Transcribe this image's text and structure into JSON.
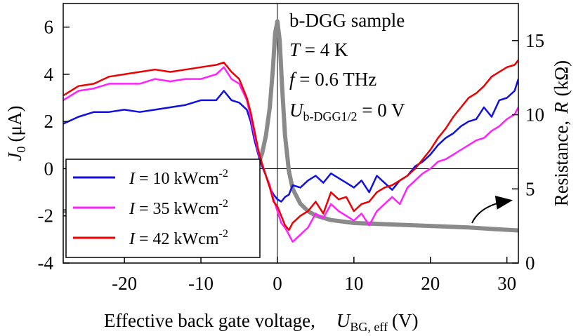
{
  "chart_data": {
    "type": "line",
    "x_axis": {
      "label_main": "Effective back gate voltage,",
      "label_symbol": "U",
      "label_sub": "BG, eff",
      "label_unit": "(V)",
      "range": [
        -28,
        31.5
      ],
      "ticks": [
        -20,
        -10,
        0,
        10,
        20,
        30
      ],
      "tick_labels": [
        "-20",
        "-10",
        "0",
        "10",
        "20",
        "30"
      ]
    },
    "y_left": {
      "label_symbol": "J",
      "label_sub": "0",
      "label_unit": "(μA)",
      "range": [
        -4,
        7
      ],
      "ticks": [
        -4,
        -2,
        0,
        2,
        4,
        6
      ],
      "tick_labels": [
        "-4",
        "-2",
        "0",
        "2",
        "4",
        "6"
      ]
    },
    "y_right": {
      "label_text": "Resistance,",
      "label_symbol": "R",
      "label_unit": "(kΩ)",
      "range": [
        0,
        17.5
      ],
      "ticks": [
        0,
        5,
        10,
        15
      ],
      "tick_labels": [
        "0",
        "5",
        "10",
        "15"
      ]
    },
    "annotations": {
      "line1": "b-DGG sample",
      "line2_sym": "T",
      "line2_val": " = 4 K",
      "line3_sym": "f",
      "line3_val": " = 0.6 THz",
      "line4_sym": "U",
      "line4_sub": "b-DGG1/2",
      "line4_val": " = 0 V"
    },
    "legend": {
      "position": "lower-left",
      "entries": [
        {
          "sym": "I",
          "text": " = 10 kWcm",
          "sup": "-2",
          "color": "#1010e0"
        },
        {
          "sym": "I",
          "text": " = 35 kWcm",
          "sup": "-2",
          "color": "#ff22ff"
        },
        {
          "sym": "I",
          "text": " = 42 kWcm",
          "sup": "-2",
          "color": "#ee0000"
        }
      ]
    },
    "grid": false,
    "reference_lines": {
      "x": 0,
      "y": 0
    },
    "series": [
      {
        "name": "I = 10 kWcm-2",
        "color": "#1010e0",
        "axis": "left",
        "x": [
          -28,
          -26,
          -24,
          -22,
          -20,
          -18,
          -16,
          -14,
          -12,
          -10,
          -8,
          -7,
          -6,
          -5,
          -4,
          -3.5,
          -3,
          -2.5,
          -2,
          -1.5,
          -1,
          -0.5,
          0,
          0.5,
          1,
          1.5,
          2,
          3,
          4,
          5,
          6,
          7,
          8,
          9,
          10,
          11,
          12,
          13,
          14,
          15,
          16,
          17,
          18,
          19,
          20,
          21,
          22,
          23,
          24,
          25,
          26,
          27,
          28,
          29,
          30,
          31,
          31.5
        ],
        "y": [
          1.9,
          2.2,
          2.4,
          2.4,
          2.5,
          2.4,
          2.5,
          2.6,
          2.7,
          2.9,
          2.9,
          3.3,
          2.9,
          2.8,
          2.5,
          2.0,
          1.2,
          0.6,
          0.1,
          -0.3,
          -0.8,
          -1.1,
          -1.3,
          -1.4,
          -1.2,
          -1.1,
          -0.7,
          -0.8,
          -0.5,
          -0.3,
          -0.6,
          -0.2,
          -0.4,
          -0.6,
          -0.8,
          -0.5,
          -1.0,
          -0.3,
          -0.6,
          -0.9,
          -0.5,
          -0.3,
          0.1,
          0.3,
          0.6,
          1.0,
          1.3,
          1.5,
          1.8,
          2.0,
          2.1,
          2.6,
          2.2,
          2.9,
          3.0,
          3.3,
          3.8
        ]
      },
      {
        "name": "I = 35 kWcm-2",
        "color": "#ff22ff",
        "axis": "left",
        "x": [
          -28,
          -26,
          -24,
          -22,
          -20,
          -18,
          -16,
          -14,
          -12,
          -10,
          -8,
          -7,
          -6,
          -5,
          -4,
          -3.5,
          -3,
          -2.5,
          -2,
          -1.5,
          -1,
          -0.5,
          0,
          0.5,
          1,
          1.5,
          2,
          3,
          4,
          5,
          6,
          7,
          8,
          9,
          10,
          11,
          12,
          13,
          14,
          15,
          16,
          17,
          18,
          19,
          20,
          21,
          22,
          23,
          24,
          25,
          26,
          27,
          28,
          29,
          30,
          31,
          31.5
        ],
        "y": [
          2.9,
          3.3,
          3.4,
          3.6,
          3.6,
          3.6,
          3.8,
          3.7,
          3.8,
          3.8,
          4.0,
          4.3,
          3.8,
          3.6,
          2.9,
          2.2,
          1.4,
          0.7,
          0.2,
          -0.3,
          -0.7,
          -1.3,
          -1.8,
          -2.3,
          -2.5,
          -2.8,
          -3.1,
          -2.8,
          -2.5,
          -1.9,
          -2.1,
          -1.5,
          -1.8,
          -2.0,
          -2.2,
          -1.9,
          -2.4,
          -1.8,
          -1.5,
          -1.2,
          -1.5,
          -0.8,
          -0.5,
          -0.2,
          0.0,
          0.3,
          0.4,
          0.6,
          0.8,
          1.0,
          1.2,
          1.3,
          1.6,
          1.8,
          2.1,
          2.3,
          2.6
        ]
      },
      {
        "name": "I = 42 kWcm-2",
        "color": "#ee0000",
        "axis": "left",
        "x": [
          -28,
          -26,
          -24,
          -22,
          -20,
          -18,
          -16,
          -14,
          -12,
          -10,
          -8,
          -7,
          -6,
          -5,
          -4,
          -3.5,
          -3,
          -2.5,
          -2,
          -1.5,
          -1,
          -0.5,
          0,
          0.5,
          1,
          1.5,
          2,
          3,
          4,
          5,
          6,
          7,
          8,
          9,
          10,
          11,
          12,
          13,
          14,
          15,
          16,
          17,
          18,
          19,
          20,
          21,
          22,
          23,
          24,
          25,
          26,
          27,
          28,
          29,
          30,
          31,
          31.5
        ],
        "y": [
          3.1,
          3.5,
          3.6,
          3.9,
          4.0,
          4.1,
          4.2,
          4.1,
          4.2,
          4.3,
          4.4,
          4.5,
          4.1,
          3.8,
          3.0,
          2.4,
          1.6,
          0.8,
          0.2,
          -0.3,
          -0.8,
          -1.4,
          -1.6,
          -2.0,
          -2.4,
          -2.6,
          -2.3,
          -2.0,
          -1.8,
          -1.4,
          -1.9,
          -1.0,
          -1.3,
          -1.2,
          -1.8,
          -1.5,
          -1.4,
          -1.0,
          -0.8,
          -0.7,
          -0.5,
          -0.3,
          0.0,
          0.4,
          0.8,
          1.3,
          1.7,
          2.2,
          2.6,
          3.0,
          3.2,
          3.5,
          3.9,
          4.1,
          4.3,
          4.4,
          4.6
        ]
      },
      {
        "name": "Resistance",
        "color": "#8a8a8a",
        "axis": "right",
        "x": [
          -28,
          -25,
          -20,
          -15,
          -10,
          -7,
          -5,
          -4,
          -3,
          -2,
          -1.5,
          -1,
          -0.6,
          -0.3,
          0,
          0.3,
          0.6,
          1,
          1.5,
          2,
          3,
          4,
          5,
          7,
          10,
          15,
          20,
          25,
          28,
          31.5
        ],
        "y": [
          3.5,
          3.6,
          3.7,
          3.8,
          4.0,
          4.2,
          4.7,
          5.2,
          6.0,
          7.4,
          8.6,
          10.5,
          13.0,
          15.5,
          16.3,
          15.0,
          12.0,
          8.6,
          6.2,
          5.0,
          4.0,
          3.5,
          3.2,
          2.9,
          2.7,
          2.6,
          2.5,
          2.4,
          2.3,
          2.2
        ]
      }
    ]
  }
}
